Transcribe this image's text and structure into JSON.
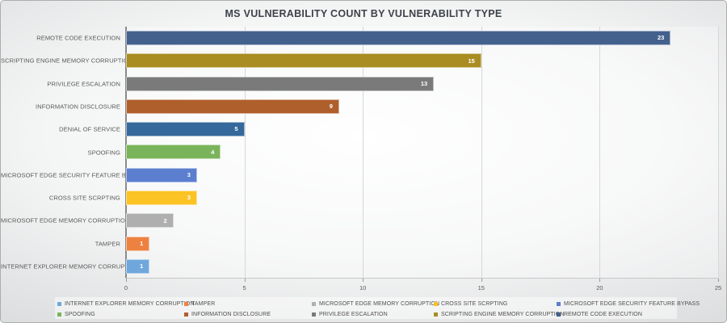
{
  "title": "MS VULNERABILITY COUNT BY VULNERABILITY TYPE",
  "chart_data": {
    "type": "bar",
    "orientation": "horizontal",
    "title": "MS VULNERABILITY COUNT BY VULNERABILITY TYPE",
    "xlabel": "",
    "ylabel": "",
    "xlim": [
      0,
      25
    ],
    "x_ticks": [
      0,
      5,
      10,
      15,
      20,
      25
    ],
    "grid": true,
    "value_labels": "inside-end",
    "legend_position": "bottom",
    "categories": [
      "REMOTE CODE EXECUTION",
      "SCRIPTING ENGINE MEMORY CORRUPTION",
      "PRIVILEGE ESCALATION",
      "INFORMATION DISCLOSURE",
      "DENIAL OF SERVICE",
      "SPOOFING",
      "MICROSOFT EDGE SECURITY FEATURE BYPASS",
      "CROSS SITE SCRPTING",
      "MICROSOFT EDGE MEMORY CORRUPTION",
      "TAMPER",
      "INTERNET EXPLORER MEMORY CORRUPTION"
    ],
    "values": [
      23,
      15,
      13,
      9,
      5,
      4,
      3,
      3,
      2,
      1,
      1
    ],
    "colors": [
      "#44618E",
      "#A98D23",
      "#7A7A7A",
      "#AF5F2C",
      "#35699B",
      "#7AB45A",
      "#5B7ECE",
      "#FBC324",
      "#AFAFAF",
      "#ED8140",
      "#6FA7DC"
    ]
  },
  "legend": {
    "rows": [
      [
        {
          "label": "INTERNET EXPLORER MEMORY CORRUPTION",
          "color": "#6FA7DC"
        },
        {
          "label": "TAMPER",
          "color": "#ED8140"
        },
        {
          "label": "MICROSOFT EDGE MEMORY CORRUPTION",
          "color": "#AFAFAF"
        },
        {
          "label": "CROSS SITE SCRPTING",
          "color": "#FBC324"
        },
        {
          "label": "MICROSOFT EDGE SECURITY FEATURE BYPASS",
          "color": "#5B7ECE"
        }
      ],
      [
        {
          "label": "SPOOFING",
          "color": "#7AB45A"
        },
        {
          "label": "INFORMATION DISCLOSURE",
          "color": "#AF5F2C"
        },
        {
          "label": "PRIVILEGE ESCALATION",
          "color": "#7A7A7A"
        },
        {
          "label": "SCRIPTING ENGINE MEMORY CORRUPTION",
          "color": "#A98D23"
        },
        {
          "label": "REMOTE CODE EXECUTION",
          "color": "#44618E"
        }
      ]
    ]
  }
}
